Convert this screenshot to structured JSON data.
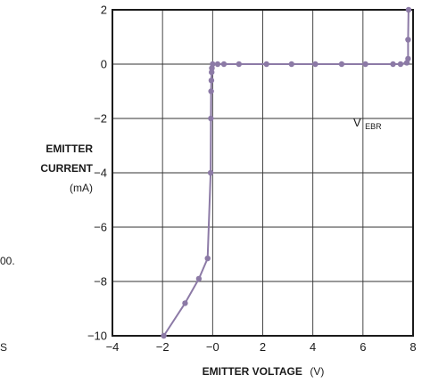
{
  "fragments": {
    "left_mid": "00.",
    "left_bottom": "S"
  },
  "chart_data": {
    "type": "line",
    "xlabel_bold": "EMITTER VOLTAGE",
    "xlabel_unit": "(V)",
    "ylabel_line1": "EMITTER",
    "ylabel_line2": "CURRENT",
    "ylabel_unit": "(mA)",
    "annotation_main": "V",
    "annotation_sub": "EBR",
    "xlim": [
      -4,
      8
    ],
    "ylim": [
      -10,
      2
    ],
    "x_ticks": [
      -4,
      -2,
      0,
      2,
      4,
      6,
      8
    ],
    "x_tick_labels": [
      "−4",
      "−2",
      "−0",
      "2",
      "4",
      "6",
      "8"
    ],
    "y_ticks": [
      -10,
      -8,
      -6,
      -4,
      -2,
      0,
      2
    ],
    "y_tick_labels": [
      "−10",
      "−8",
      "−6",
      "−4",
      "−2",
      "0",
      "2"
    ],
    "grid": true,
    "line_color": "#8c7aa6",
    "series": [
      {
        "points": [
          [
            -1.95,
            -10
          ],
          [
            -1.1,
            -8.8
          ],
          [
            -0.55,
            -7.9
          ],
          [
            -0.2,
            -7.15
          ],
          [
            -0.08,
            -4.0
          ],
          [
            -0.07,
            -2.0
          ],
          [
            -0.06,
            -1.0
          ],
          [
            -0.05,
            -0.6
          ],
          [
            -0.04,
            -0.3
          ],
          [
            -0.03,
            -0.15
          ],
          [
            0.0,
            0.0
          ],
          [
            0.2,
            0.0
          ],
          [
            0.45,
            0.0
          ],
          [
            1.05,
            0.0
          ],
          [
            2.15,
            0.0
          ],
          [
            3.15,
            0.0
          ],
          [
            4.1,
            0.0
          ],
          [
            5.15,
            0.0
          ],
          [
            6.1,
            0.0
          ],
          [
            7.2,
            0.0
          ],
          [
            7.5,
            0.0
          ],
          [
            7.75,
            0.05
          ],
          [
            7.8,
            0.2
          ],
          [
            7.8,
            0.9
          ],
          [
            7.82,
            2.0
          ]
        ]
      }
    ]
  }
}
